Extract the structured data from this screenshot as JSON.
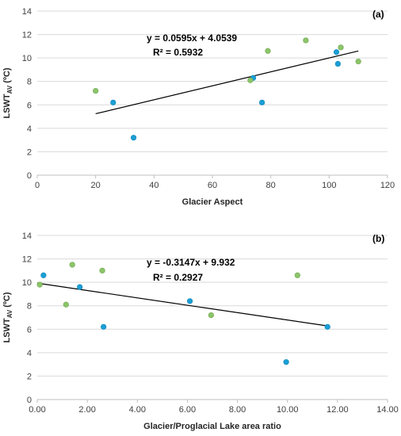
{
  "chart_data": [
    {
      "type": "scatter",
      "panel_label": "(a)",
      "xlabel": "Glacier Aspect",
      "ylabel_main": "LSWT",
      "ylabel_sub": "AV",
      "ylabel_unit": " (ºC)",
      "xlim": [
        0,
        120
      ],
      "ylim": [
        0,
        14
      ],
      "xticks": [
        0,
        20,
        40,
        60,
        80,
        100,
        120
      ],
      "yticks": [
        0,
        2,
        4,
        6,
        8,
        10,
        12,
        14
      ],
      "xtick_labels": [
        "0",
        "20",
        "40",
        "60",
        "80",
        "100",
        "120"
      ],
      "ytick_labels": [
        "0",
        "2",
        "4",
        "6",
        "8",
        "10",
        "12",
        "14"
      ],
      "grid": "horizontal",
      "equation": "y = 0.0595x + 4.0539",
      "r2": "R² = 0.5932",
      "trendline": {
        "slope": 0.0595,
        "intercept": 4.0539,
        "x_range": [
          20,
          110
        ]
      },
      "series": [
        {
          "color": "#1a9fd6",
          "points": [
            [
              26,
              6.2
            ],
            [
              33,
              3.2
            ],
            [
              74,
              8.3
            ],
            [
              77,
              6.2
            ],
            [
              102.5,
              10.5
            ],
            [
              103,
              9.5
            ]
          ]
        },
        {
          "color": "#8cc46a",
          "points": [
            [
              20,
              7.2
            ],
            [
              73,
              8.1
            ],
            [
              79,
              10.6
            ],
            [
              92,
              11.5
            ],
            [
              104,
              10.9
            ],
            [
              110,
              9.7
            ]
          ]
        }
      ]
    },
    {
      "type": "scatter",
      "panel_label": "(b)",
      "xlabel": "Glacier/Proglacial  Lake area ratio",
      "ylabel_main": "LSWT",
      "ylabel_sub": "AV",
      "ylabel_unit": " (ºC)",
      "xlim": [
        0,
        14
      ],
      "ylim": [
        0,
        14
      ],
      "xticks": [
        0,
        2,
        4,
        6,
        8,
        10,
        12,
        14
      ],
      "yticks": [
        0,
        2,
        4,
        6,
        8,
        10,
        12,
        14
      ],
      "xtick_labels": [
        "0.00",
        "2.00",
        "4.00",
        "6.00",
        "8.00",
        "10.00",
        "12.00",
        "14.00"
      ],
      "ytick_labels": [
        "0",
        "2",
        "4",
        "6",
        "8",
        "10",
        "12",
        "14"
      ],
      "grid": "horizontal",
      "equation": "y = -0.3147x + 9.932",
      "r2": "R² = 0.2927",
      "trendline": {
        "slope": -0.3147,
        "intercept": 9.932,
        "x_range": [
          0,
          11.6
        ]
      },
      "series": [
        {
          "color": "#1a9fd6",
          "points": [
            [
              0.25,
              10.6
            ],
            [
              1.7,
              9.6
            ],
            [
              2.65,
              6.2
            ],
            [
              6.1,
              8.4
            ],
            [
              9.95,
              3.2
            ],
            [
              11.6,
              6.2
            ]
          ]
        },
        {
          "color": "#8cc46a",
          "points": [
            [
              0.1,
              9.8
            ],
            [
              1.15,
              8.1
            ],
            [
              1.4,
              11.5
            ],
            [
              2.6,
              11.0
            ],
            [
              6.95,
              7.2
            ],
            [
              10.4,
              10.6
            ]
          ]
        }
      ]
    }
  ]
}
